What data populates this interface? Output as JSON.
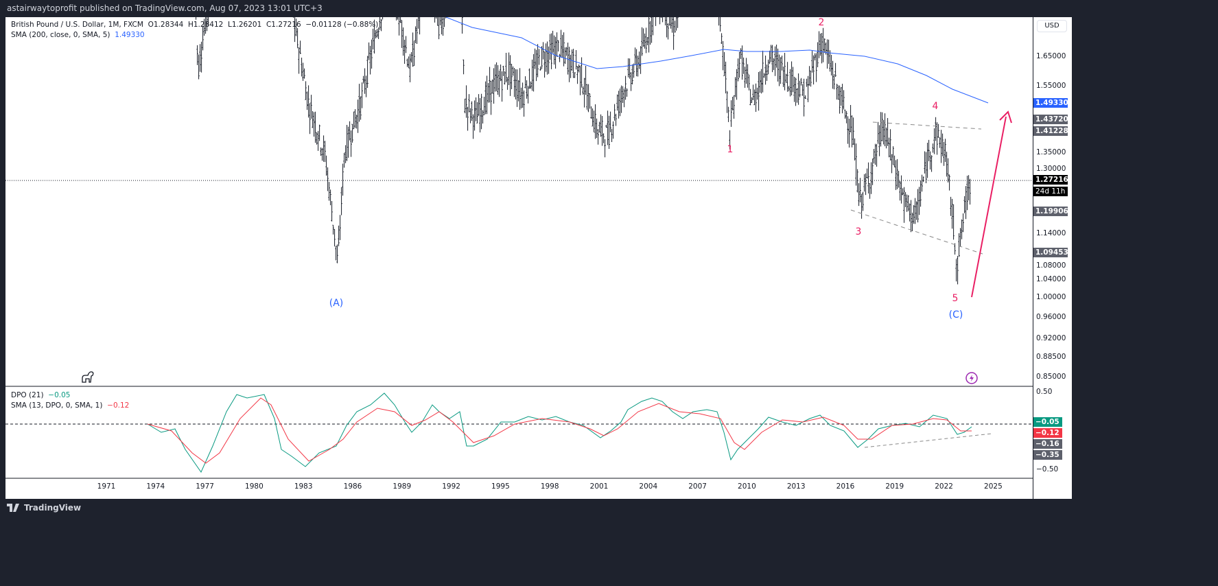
{
  "header": {
    "published": "astairwaytoprofit published on TradingView.com, Aug 07, 2023 13:01 UTC+3"
  },
  "legend": {
    "symbol": "British Pound / U.S. Dollar, 1M, FXCM",
    "open": "O1.28344",
    "high": "H1.28412",
    "low": "L1.26201",
    "close": "C1.27216",
    "change": "−0.01128 (−0.88%)",
    "sma_label": "SMA (200, close, 0, SMA, 5)",
    "sma_value": "1.49330",
    "dpo_label": "DPO (21)",
    "dpo_value": "−0.05",
    "dpo_sma_label": "SMA (13, DPO, 0, SMA, 1)",
    "dpo_sma_value": "−0.12"
  },
  "price_axis": {
    "currency": "USD",
    "ticks": [
      "1.65000",
      "1.55000",
      "1.35000",
      "1.30000",
      "1.14000",
      "1.08000",
      "1.04000",
      "1.00000",
      "0.96000",
      "0.92000",
      "0.88500",
      "0.85000"
    ],
    "tags": {
      "sma": "1.49330",
      "high1": "1.43720",
      "high2": "1.41228",
      "last": "1.27216",
      "countdown": "24d 11h",
      "low1": "1.19906",
      "low2": "1.09453"
    }
  },
  "indicator_axis": {
    "ticks": [
      "0.50",
      "−0.50"
    ],
    "tags": {
      "dpo": "−0.05",
      "sma": "−0.12",
      "t1": "−0.16",
      "t2": "−0.35"
    }
  },
  "time_axis": [
    "1971",
    "1974",
    "1977",
    "1980",
    "1983",
    "1986",
    "1989",
    "1992",
    "1995",
    "1998",
    "2001",
    "2004",
    "2007",
    "2010",
    "2013",
    "2016",
    "2019",
    "2022",
    "2025"
  ],
  "wave_labels": {
    "A": "(A)",
    "w1": "1",
    "w2": "2",
    "w3": "3",
    "w4": "4",
    "w5": "5",
    "C": "(C)"
  },
  "colors": {
    "sma": "#2962ff",
    "dpo": "#089981",
    "dpo_sma": "#f23645",
    "wave_red": "#e91e63",
    "wave_blue": "#2962ff",
    "tag_gray": "#5d606b"
  },
  "footer": {
    "brand": "TradingView"
  }
}
